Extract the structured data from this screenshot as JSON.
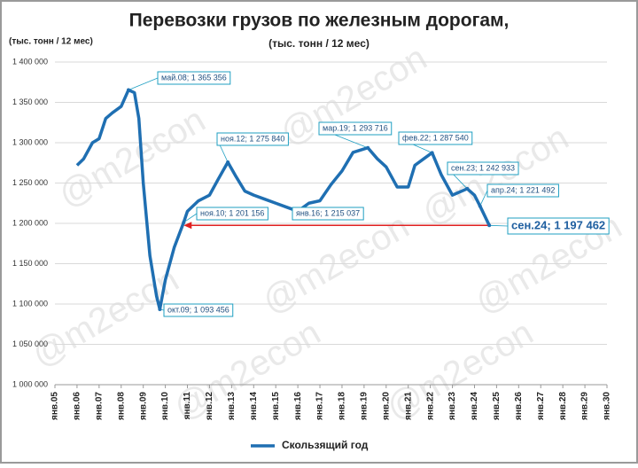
{
  "chart_data": {
    "type": "line",
    "title": "Перевозки грузов по железным дорогам,",
    "subtitle": "(тыс. тонн / 12 мес)",
    "y_label": "(тыс. тонн / 12 мес)",
    "watermark": "@m2econ",
    "grid": true,
    "legend": "bottom",
    "xlim": [
      2005,
      2030
    ],
    "xticks": [
      {
        "value": 2005,
        "label": "янв.05"
      },
      {
        "value": 2006,
        "label": "янв.06"
      },
      {
        "value": 2007,
        "label": "янв.07"
      },
      {
        "value": 2008,
        "label": "янв.08"
      },
      {
        "value": 2009,
        "label": "янв.09"
      },
      {
        "value": 2010,
        "label": "янв.10"
      },
      {
        "value": 2011,
        "label": "янв.11"
      },
      {
        "value": 2012,
        "label": "янв.12"
      },
      {
        "value": 2013,
        "label": "янв.13"
      },
      {
        "value": 2014,
        "label": "янв.14"
      },
      {
        "value": 2015,
        "label": "янв.15"
      },
      {
        "value": 2016,
        "label": "янв.16"
      },
      {
        "value": 2017,
        "label": "янв.17"
      },
      {
        "value": 2018,
        "label": "янв.18"
      },
      {
        "value": 2019,
        "label": "янв.19"
      },
      {
        "value": 2020,
        "label": "янв.20"
      },
      {
        "value": 2021,
        "label": "янв.21"
      },
      {
        "value": 2022,
        "label": "янв.22"
      },
      {
        "value": 2023,
        "label": "янв.23"
      },
      {
        "value": 2024,
        "label": "янв.24"
      },
      {
        "value": 2025,
        "label": "янв.25"
      },
      {
        "value": 2026,
        "label": "янв.26"
      },
      {
        "value": 2027,
        "label": "янв.27"
      },
      {
        "value": 2028,
        "label": "янв.28"
      },
      {
        "value": 2029,
        "label": "янв.29"
      },
      {
        "value": 2030,
        "label": "янв.30"
      }
    ],
    "ylim": [
      1000000,
      1400000
    ],
    "yticks": [
      {
        "value": 1000000,
        "label": "1 000 000"
      },
      {
        "value": 1050000,
        "label": "1 050 000"
      },
      {
        "value": 1100000,
        "label": "1 100 000"
      },
      {
        "value": 1150000,
        "label": "1 150 000"
      },
      {
        "value": 1200000,
        "label": "1 200 000"
      },
      {
        "value": 1250000,
        "label": "1 250 000"
      },
      {
        "value": 1300000,
        "label": "1 300 000"
      },
      {
        "value": 1350000,
        "label": "1 350 000"
      },
      {
        "value": 1400000,
        "label": "1 400 000"
      }
    ],
    "series": [
      {
        "name": "Скользящий год",
        "color": "#1f6fb2",
        "x": [
          2006.0,
          2006.3,
          2006.7,
          2007.0,
          2007.3,
          2007.6,
          2008.0,
          2008.33,
          2008.6,
          2008.8,
          2009.0,
          2009.3,
          2009.6,
          2009.75,
          2010.0,
          2010.4,
          2010.83,
          2011.0,
          2011.5,
          2012.0,
          2012.4,
          2012.83,
          2013.2,
          2013.6,
          2014.0,
          2014.5,
          2015.0,
          2015.5,
          2016.0,
          2016.5,
          2017.0,
          2017.5,
          2018.0,
          2018.5,
          2019.17,
          2019.6,
          2020.0,
          2020.5,
          2021.0,
          2021.3,
          2021.7,
          2022.08,
          2022.5,
          2023.0,
          2023.67,
          2024.0,
          2024.25,
          2024.67
        ],
        "values": [
          1272000,
          1280000,
          1300000,
          1305000,
          1330000,
          1337000,
          1345000,
          1365356,
          1362000,
          1330000,
          1250000,
          1160000,
          1110000,
          1093456,
          1130000,
          1170000,
          1201156,
          1215000,
          1228000,
          1235000,
          1255000,
          1275840,
          1258000,
          1240000,
          1235000,
          1230000,
          1225000,
          1220000,
          1215037,
          1225000,
          1228000,
          1248000,
          1265000,
          1288000,
          1293716,
          1280000,
          1270000,
          1245000,
          1245000,
          1272000,
          1280000,
          1287540,
          1260000,
          1235000,
          1242933,
          1235000,
          1221492,
          1197462
        ]
      }
    ],
    "annotations": [
      {
        "text": "май.08; 1 365 356",
        "x": 2008.33,
        "value": 1365356
      },
      {
        "text": "окт.09; 1 093 456",
        "x": 2009.75,
        "value": 1093456
      },
      {
        "text": "ноя.10; 1 201 156",
        "x": 2010.83,
        "value": 1201156
      },
      {
        "text": "ноя.12; 1 275 840",
        "x": 2012.83,
        "value": 1275840
      },
      {
        "text": "янв.16; 1 215 037",
        "x": 2016.0,
        "value": 1215037
      },
      {
        "text": "мар.19; 1 293 716",
        "x": 2019.17,
        "value": 1293716
      },
      {
        "text": "фев.22; 1 287 540",
        "x": 2022.08,
        "value": 1287540
      },
      {
        "text": "сен.23; 1 242 933",
        "x": 2023.67,
        "value": 1242933
      },
      {
        "text": "апр.24; 1 221 492",
        "x": 2024.25,
        "value": 1221492
      },
      {
        "text": "сен.24; 1 197 462",
        "x": 2024.67,
        "value": 1197462
      }
    ]
  }
}
